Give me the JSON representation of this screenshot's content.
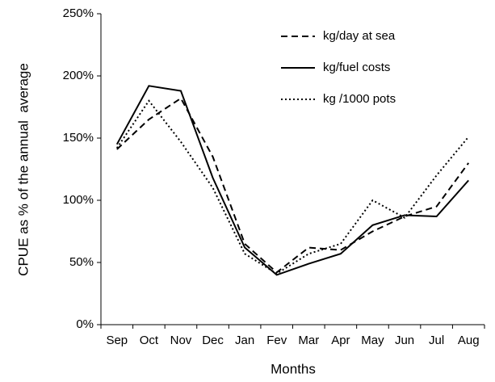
{
  "chart_data": {
    "type": "line",
    "categories": [
      "Sep",
      "Oct",
      "Nov",
      "Dec",
      "Jan",
      "Fev",
      "Mar",
      "Apr",
      "May",
      "Jun",
      "Jul",
      "Aug"
    ],
    "series": [
      {
        "name": "kg/day at sea",
        "color": "#000000",
        "linestyle": "dashed",
        "values": [
          141,
          165,
          182,
          135,
          65,
          42,
          62,
          60,
          75,
          87,
          95,
          130
        ]
      },
      {
        "name": "kg/fuel costs",
        "color": "#000000",
        "linestyle": "solid",
        "values": [
          145,
          192,
          188,
          118,
          62,
          40,
          49,
          57,
          80,
          88,
          87,
          116
        ]
      },
      {
        "name": "kg /1000 pots",
        "color": "#000000",
        "linestyle": "dotted",
        "values": [
          142,
          180,
          147,
          110,
          57,
          41,
          57,
          65,
          100,
          86,
          120,
          151
        ]
      }
    ],
    "ylim": [
      0,
      250
    ],
    "yticks": [
      {
        "value": 0,
        "label": "0%"
      },
      {
        "value": 50,
        "label": "50%"
      },
      {
        "value": 100,
        "label": "100%"
      },
      {
        "value": 150,
        "label": "150%"
      },
      {
        "value": 200,
        "label": "200%"
      },
      {
        "value": 250,
        "label": "250%"
      }
    ],
    "ylabel": "CPUE as % of the annual  average",
    "xlabel": "Months",
    "legend": "upper right",
    "grid": false
  }
}
